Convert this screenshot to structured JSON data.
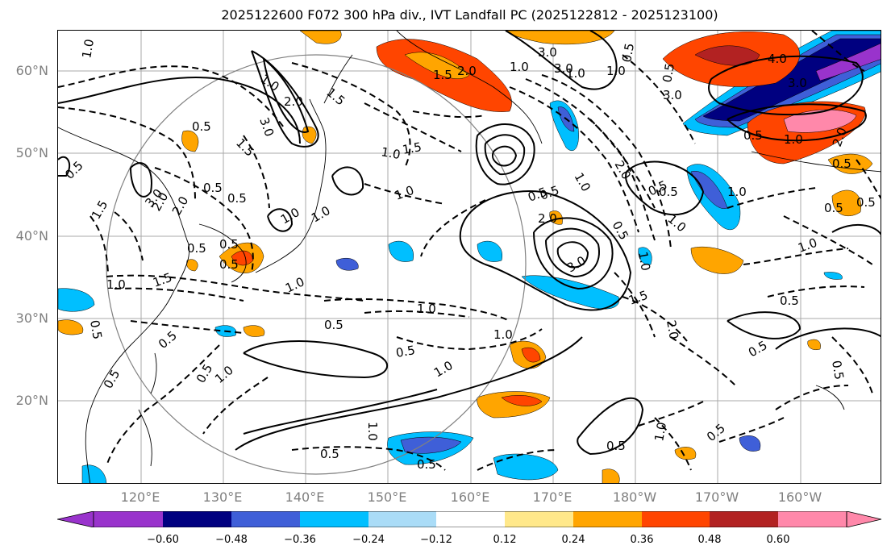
{
  "title": "2025122600 F072 300 hPa div., IVT Landfall PC (2025122812 - 2025123100)",
  "lat_labels": [
    "60°N",
    "50°N",
    "40°N",
    "30°N",
    "20°N"
  ],
  "lon_labels": [
    "120°E",
    "130°E",
    "140°E",
    "150°E",
    "160°E",
    "170°E",
    "180°W",
    "170°W",
    "160°W"
  ],
  "colorbar": {
    "ticks": [
      "−0.60",
      "−0.48",
      "−0.36",
      "−0.24",
      "−0.12",
      "0.12",
      "0.24",
      "0.36",
      "0.48",
      "0.60"
    ],
    "colors": [
      "#9933cc",
      "#000080",
      "#3f5fd8",
      "#00bfff",
      "#aadcf7",
      "#ffffff",
      "#ffe88a",
      "#ffa500",
      "#ff4500",
      "#b22222",
      "#ff88aa"
    ],
    "under_color": "#9933cc",
    "over_color": "#ff88aa"
  },
  "contour_labels": [
    "1.0",
    "2.0",
    "1.0",
    "1.5",
    "3.0",
    "0.5",
    "1.5",
    "0.5",
    "0.5",
    "3.0",
    "1.0",
    "0.5",
    "2.0",
    "1.5",
    "1.5",
    "1.0",
    "0.5",
    "1.0",
    "1.0",
    "1.5",
    "0.5",
    "0.5",
    "1.0",
    "0.5",
    "1.0",
    "2.0",
    "1.0",
    "1.5",
    "3.0",
    "3.0",
    "2.0",
    "0.5",
    "1.0",
    "2.0",
    "0.5",
    "0.5",
    "1.0",
    "0.5",
    "1.0",
    "0.5",
    "1.0",
    "3.0",
    "2.0",
    "0.5",
    "1.0",
    "1.0",
    "1.5",
    "0.5",
    "1.0",
    "0.5",
    "1.0",
    "2.0",
    "0.5",
    "1.0",
    "0.5",
    "0.5",
    "0.5",
    "0.5",
    "1.0",
    "0.5",
    "0.5",
    "0.5",
    "1.0",
    "0.5",
    "1.0",
    "0.5",
    "0.5",
    "0.5",
    "1.0",
    "0.5",
    "3.0",
    "1.0",
    "0.5",
    "4.0",
    "3.0",
    "0.5",
    "2.0"
  ]
}
